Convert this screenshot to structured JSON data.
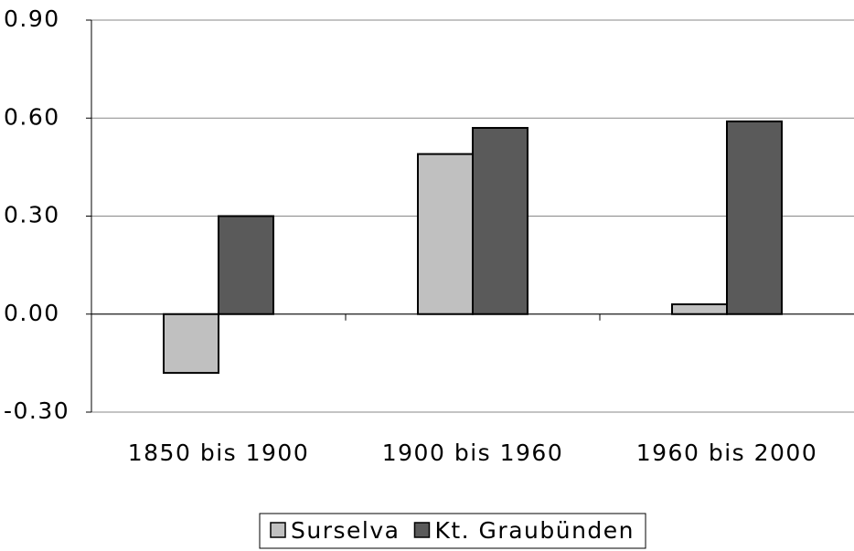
{
  "chart_data": {
    "type": "bar",
    "categories": [
      "1850 bis 1900",
      "1900 bis 1960",
      "1960 bis 2000"
    ],
    "series": [
      {
        "name": "Surselva",
        "color": "#c0c0c0",
        "values": [
          -0.18,
          0.49,
          0.03
        ]
      },
      {
        "name": "Kt. Graubünden",
        "color": "#5a5a5a",
        "values": [
          0.3,
          0.57,
          0.59
        ]
      }
    ],
    "ylim": [
      -0.3,
      0.9
    ],
    "yticks": [
      {
        "value": -0.3,
        "label": "-0.30"
      },
      {
        "value": 0,
        "label": "0.00"
      },
      {
        "value": 0.3,
        "label": "0.30"
      },
      {
        "value": 0.6,
        "label": "0.60"
      },
      {
        "value": 0.9,
        "label": "0.90"
      }
    ],
    "grid": true,
    "legend": "bottom"
  }
}
